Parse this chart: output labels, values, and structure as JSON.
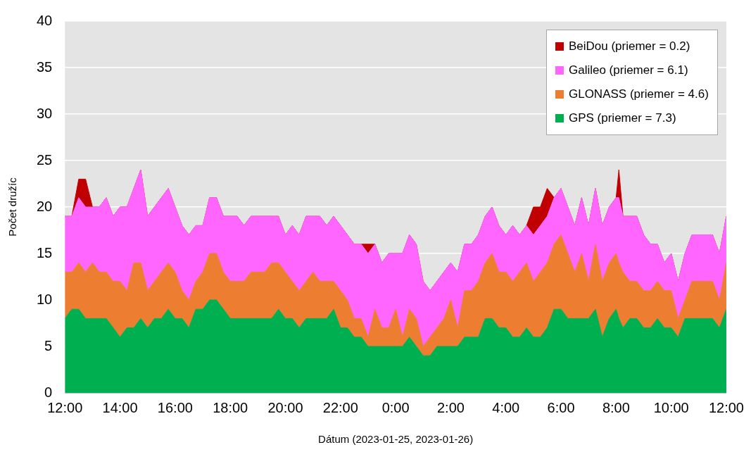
{
  "chart_data": {
    "type": "area",
    "stacked": true,
    "xlabel": "Dátum (2023-01-25, 2023-01-26)",
    "ylabel": "Počet družíc",
    "x": [
      "2023-01-25T12:00",
      "2023-01-25T12:15",
      "2023-01-25T12:30",
      "2023-01-25T12:45",
      "2023-01-25T13:00",
      "2023-01-25T13:15",
      "2023-01-25T13:30",
      "2023-01-25T13:45",
      "2023-01-25T14:00",
      "2023-01-25T14:15",
      "2023-01-25T14:30",
      "2023-01-25T14:45",
      "2023-01-25T15:00",
      "2023-01-25T15:15",
      "2023-01-25T15:30",
      "2023-01-25T15:45",
      "2023-01-25T16:00",
      "2023-01-25T16:15",
      "2023-01-25T16:30",
      "2023-01-25T16:45",
      "2023-01-25T17:00",
      "2023-01-25T17:15",
      "2023-01-25T17:30",
      "2023-01-25T17:45",
      "2023-01-25T18:00",
      "2023-01-25T18:15",
      "2023-01-25T18:30",
      "2023-01-25T18:45",
      "2023-01-25T19:00",
      "2023-01-25T19:15",
      "2023-01-25T19:30",
      "2023-01-25T19:45",
      "2023-01-25T20:00",
      "2023-01-25T20:15",
      "2023-01-25T20:30",
      "2023-01-25T20:45",
      "2023-01-25T21:00",
      "2023-01-25T21:15",
      "2023-01-25T21:30",
      "2023-01-25T21:45",
      "2023-01-25T22:00",
      "2023-01-25T22:15",
      "2023-01-25T22:30",
      "2023-01-25T22:45",
      "2023-01-25T23:00",
      "2023-01-25T23:15",
      "2023-01-25T23:30",
      "2023-01-25T23:45",
      "2023-01-26T00:00",
      "2023-01-26T00:15",
      "2023-01-26T00:30",
      "2023-01-26T00:45",
      "2023-01-26T01:00",
      "2023-01-26T01:15",
      "2023-01-26T01:30",
      "2023-01-26T01:45",
      "2023-01-26T02:00",
      "2023-01-26T02:15",
      "2023-01-26T02:30",
      "2023-01-26T02:45",
      "2023-01-26T03:00",
      "2023-01-26T03:15",
      "2023-01-26T03:30",
      "2023-01-26T03:45",
      "2023-01-26T04:00",
      "2023-01-26T04:15",
      "2023-01-26T04:30",
      "2023-01-26T04:45",
      "2023-01-26T05:00",
      "2023-01-26T05:15",
      "2023-01-26T05:30",
      "2023-01-26T05:45",
      "2023-01-26T06:00",
      "2023-01-26T06:15",
      "2023-01-26T06:30",
      "2023-01-26T06:45",
      "2023-01-26T07:00",
      "2023-01-26T07:15",
      "2023-01-26T07:30",
      "2023-01-26T07:45",
      "2023-01-26T08:00",
      "2023-01-26T08:06",
      "2023-01-26T08:15",
      "2023-01-26T08:30",
      "2023-01-26T08:45",
      "2023-01-26T09:00",
      "2023-01-26T09:15",
      "2023-01-26T09:30",
      "2023-01-26T09:45",
      "2023-01-26T10:00",
      "2023-01-26T10:15",
      "2023-01-26T10:30",
      "2023-01-26T10:45",
      "2023-01-26T11:00",
      "2023-01-26T11:15",
      "2023-01-26T11:30",
      "2023-01-26T11:45",
      "2023-01-26T12:00"
    ],
    "series": [
      {
        "name": "GPS (priemer = 7.3)",
        "color": "#00b050",
        "values": [
          8,
          9,
          9,
          8,
          8,
          8,
          8,
          7,
          6,
          7,
          7,
          8,
          7,
          8,
          8,
          9,
          8,
          8,
          7,
          9,
          9,
          10,
          10,
          9,
          8,
          8,
          8,
          8,
          8,
          8,
          8,
          9,
          8,
          8,
          7,
          8,
          8,
          8,
          8,
          9,
          7,
          7,
          6,
          6,
          5,
          5,
          5,
          5,
          5,
          5,
          6,
          5,
          4,
          4,
          5,
          5,
          5,
          5,
          6,
          6,
          6,
          8,
          8,
          7,
          7,
          6,
          6,
          7,
          6,
          6,
          7,
          9,
          9,
          8,
          8,
          8,
          8,
          9,
          6,
          8,
          9,
          8,
          7,
          8,
          8,
          7,
          7,
          8,
          7,
          7,
          6,
          8,
          8,
          8,
          8,
          8,
          7,
          9
        ]
      },
      {
        "name": "GLONASS (priemer = 4.6)",
        "color": "#ed7d31",
        "values": [
          5,
          4,
          5,
          5,
          6,
          5,
          5,
          5,
          6,
          4,
          7,
          6,
          4,
          4,
          5,
          5,
          5,
          3,
          3,
          3,
          4,
          5,
          5,
          4,
          4,
          4,
          4,
          5,
          5,
          5,
          6,
          5,
          5,
          4,
          4,
          4,
          5,
          4,
          4,
          3,
          4,
          3,
          2,
          2,
          1,
          4,
          2,
          2,
          4,
          1,
          3,
          3,
          1,
          2,
          2,
          3,
          5,
          2,
          5,
          5,
          6,
          6,
          7,
          6,
          6,
          6,
          7,
          7,
          6,
          7,
          7,
          7,
          8,
          7,
          5,
          7,
          4,
          7,
          6,
          6,
          6,
          6,
          6,
          4,
          4,
          4,
          4,
          4,
          4,
          4,
          2,
          2,
          4,
          4,
          4,
          4,
          3,
          5
        ]
      },
      {
        "name": "Galileo (priemer = 6.1)",
        "color": "#ff66ff",
        "values": [
          6,
          6,
          7,
          7,
          6,
          7,
          8,
          7,
          8,
          9,
          8,
          10,
          8,
          8,
          8,
          8,
          7,
          7,
          7,
          6,
          5,
          6,
          6,
          6,
          7,
          7,
          6,
          6,
          6,
          6,
          5,
          5,
          4,
          6,
          6,
          7,
          6,
          7,
          6,
          7,
          7,
          7,
          8,
          8,
          9,
          7,
          7,
          8,
          6,
          9,
          8,
          8,
          7,
          5,
          5,
          5,
          4,
          6,
          5,
          5,
          5,
          5,
          5,
          5,
          4,
          6,
          4,
          4,
          5,
          5,
          5,
          5,
          5,
          5,
          5,
          6,
          6,
          6,
          6,
          6,
          6,
          7,
          6,
          7,
          7,
          6,
          5,
          4,
          3,
          4,
          4,
          5,
          5,
          5,
          5,
          5,
          5,
          5
        ]
      },
      {
        "name": "BeiDou (priemer = 0.2)",
        "color": "#c00000",
        "values": [
          0,
          0,
          2,
          3,
          0,
          0,
          0,
          0,
          0,
          0,
          0,
          0,
          0,
          0,
          0,
          0,
          0,
          0,
          0,
          0,
          0,
          0,
          0,
          0,
          0,
          0,
          0,
          0,
          0,
          0,
          0,
          0,
          0,
          0,
          0,
          0,
          0,
          0,
          0,
          0,
          0,
          0,
          0,
          0,
          1,
          0,
          0,
          0,
          0,
          0,
          0,
          0,
          0,
          0,
          0,
          0,
          0,
          0,
          0,
          0,
          0,
          0,
          0,
          0,
          0,
          0,
          0,
          0,
          3,
          2,
          3,
          0,
          0,
          0,
          0,
          0,
          0,
          0,
          0,
          0,
          0,
          3,
          0,
          0,
          0,
          0,
          0,
          0,
          0,
          0,
          0,
          0,
          0,
          0,
          0,
          0,
          0,
          0
        ]
      }
    ],
    "xlim": [
      "2023-01-25T12:00",
      "2023-01-26T12:00"
    ],
    "xticks": [
      {
        "value": "2023-01-25T12:00",
        "label": "12:00"
      },
      {
        "value": "2023-01-25T14:00",
        "label": "14:00"
      },
      {
        "value": "2023-01-25T16:00",
        "label": "16:00"
      },
      {
        "value": "2023-01-25T18:00",
        "label": "18:00"
      },
      {
        "value": "2023-01-25T20:00",
        "label": "20:00"
      },
      {
        "value": "2023-01-25T22:00",
        "label": "22:00"
      },
      {
        "value": "2023-01-26T00:00",
        "label": "0:00"
      },
      {
        "value": "2023-01-26T02:00",
        "label": "2:00"
      },
      {
        "value": "2023-01-26T04:00",
        "label": "4:00"
      },
      {
        "value": "2023-01-26T06:00",
        "label": "6:00"
      },
      {
        "value": "2023-01-26T08:00",
        "label": "8:00"
      },
      {
        "value": "2023-01-26T10:00",
        "label": "10:00"
      },
      {
        "value": "2023-01-26T12:00",
        "label": "12:00"
      }
    ],
    "ylim": [
      0,
      40
    ],
    "yticks": [
      0,
      5,
      10,
      15,
      20,
      25,
      30,
      35,
      40
    ],
    "grid": "y",
    "legend": "top right",
    "marker": "none"
  }
}
